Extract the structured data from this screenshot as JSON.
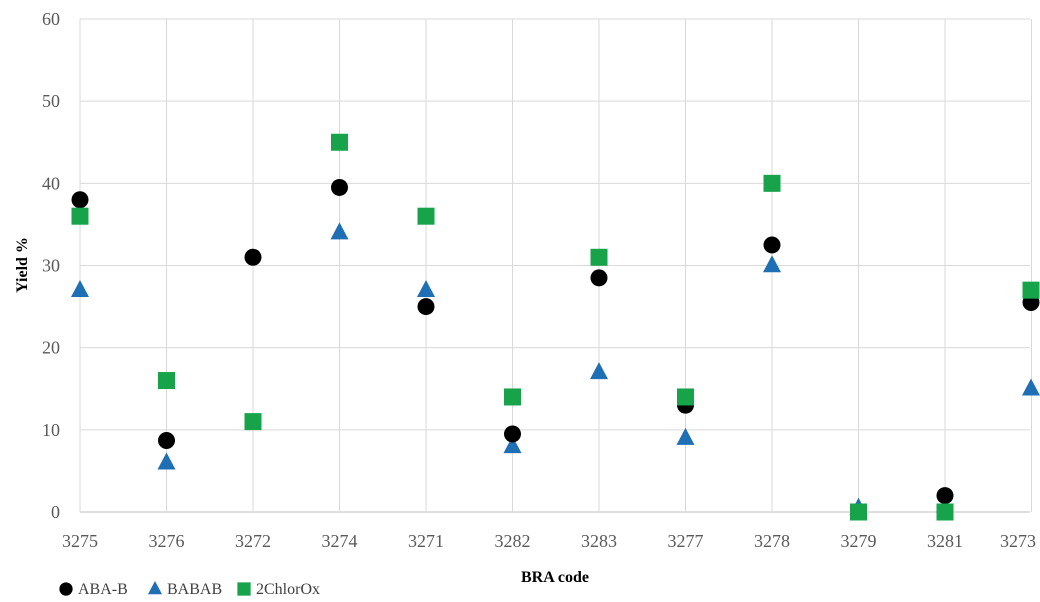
{
  "chart_data": {
    "type": "scatter",
    "title": "",
    "xlabel": "BRA code",
    "ylabel": "Yield %",
    "ylim": [
      0,
      60
    ],
    "yticks": [
      0,
      10,
      20,
      30,
      40,
      50,
      60
    ],
    "grid": true,
    "legend_position": "bottom-left",
    "categories": [
      "3275",
      "3276",
      "3272",
      "3274",
      "3271",
      "3282",
      "3283",
      "3277",
      "3278",
      "3279",
      "3281",
      "3273"
    ],
    "series": [
      {
        "name": "ABA-B",
        "marker": "circle",
        "color": "#000000",
        "values": [
          38,
          8.7,
          31,
          39.5,
          25,
          9.5,
          28.5,
          13,
          32.5,
          null,
          2,
          25.5
        ]
      },
      {
        "name": "BABAB",
        "marker": "triangle",
        "color": "#1f6fb5",
        "values": [
          27,
          6,
          null,
          34,
          27,
          8,
          17,
          9,
          30,
          0.5,
          null,
          15
        ]
      },
      {
        "name": "2ChlorOx",
        "marker": "square",
        "color": "#16a34a",
        "values": [
          36,
          16,
          11,
          45,
          36,
          14,
          31,
          14,
          40,
          0,
          0,
          27
        ]
      }
    ]
  }
}
